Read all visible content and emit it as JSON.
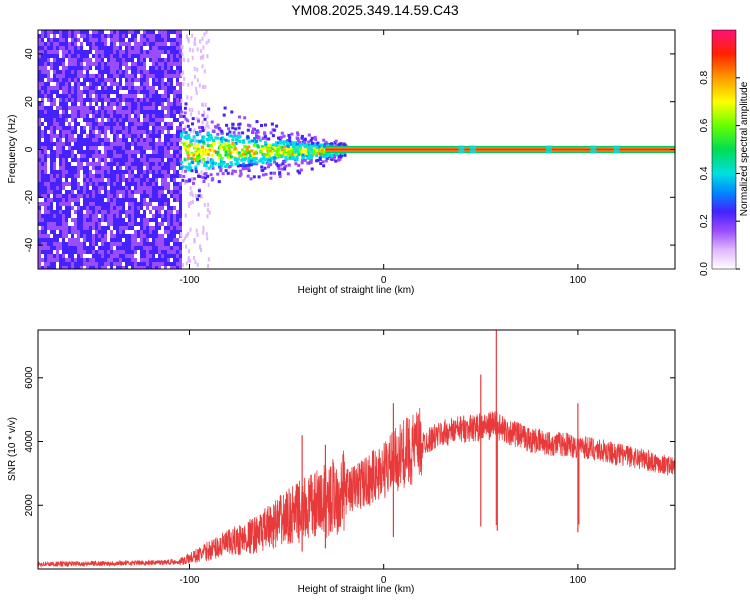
{
  "title": "YM08.2025.349.14.59.C43",
  "chart_data": [
    {
      "type": "heatmap",
      "title": "YM08.2025.349.14.59.C43",
      "xlabel": "Height of straight line (km)",
      "ylabel": "Frequency (Hz)",
      "xlim": [
        -178,
        150
      ],
      "ylim": [
        -50,
        50
      ],
      "x_ticks": [
        -100,
        0,
        100
      ],
      "x_tick_labels": [
        "-100",
        "0",
        "100"
      ],
      "y_ticks": [
        -40,
        -20,
        0,
        20,
        40
      ],
      "y_tick_labels": [
        "-40",
        "-20",
        "0",
        "20",
        "40"
      ],
      "colorbar": {
        "label": "Normalized spectral amplitude",
        "range": [
          0,
          1
        ],
        "ticks": [
          0.0,
          0.2,
          0.4,
          0.6,
          0.8
        ],
        "tick_labels": [
          "0.0",
          "0.2",
          "0.4",
          "0.6",
          "0.8"
        ]
      },
      "features": {
        "noise_region_x": [
          -178,
          -105
        ],
        "dense_band_x": [
          -105,
          -20
        ],
        "narrow_band_x": [
          -20,
          150
        ],
        "band_center_hz": 0,
        "narrow_band_halfwidth_hz": 1.5
      }
    },
    {
      "type": "line",
      "title": "",
      "xlabel": "Height of straight line (km)",
      "ylabel": "SNR (10 * v/v)",
      "xlim": [
        -178,
        150
      ],
      "ylim": [
        0,
        7500
      ],
      "x_ticks": [
        -100,
        0,
        100
      ],
      "x_tick_labels": [
        "-100",
        "0",
        "100"
      ],
      "y_ticks": [
        2000,
        4000,
        6000
      ],
      "y_tick_labels": [
        "2000",
        "4000",
        "6000"
      ],
      "series": [
        {
          "name": "SNR",
          "color": "#e83a3a",
          "x": [
            -178,
            -150,
            -120,
            -105,
            -100,
            -95,
            -85,
            -75,
            -65,
            -55,
            -45,
            -35,
            -25,
            -15,
            -5,
            0,
            10,
            20,
            30,
            40,
            50,
            55,
            58,
            60,
            65,
            75,
            85,
            95,
            100,
            110,
            120,
            130,
            140,
            150
          ],
          "values": [
            150,
            170,
            200,
            230,
            330,
            450,
            700,
            900,
            1100,
            1450,
            1750,
            2000,
            2300,
            2550,
            2900,
            3100,
            3600,
            3950,
            4250,
            4400,
            4450,
            4500,
            4600,
            4400,
            4300,
            4050,
            3950,
            3900,
            3850,
            3750,
            3600,
            3500,
            3350,
            3200
          ]
        }
      ],
      "spikes": [
        {
          "x": -42,
          "value": 4200
        },
        {
          "x": -30,
          "value": 3900
        },
        {
          "x": 5,
          "value": 5200
        },
        {
          "x": 50,
          "value": 6100
        },
        {
          "x": 58,
          "value": 7500
        },
        {
          "x": 100,
          "value": 5200
        }
      ]
    }
  ]
}
